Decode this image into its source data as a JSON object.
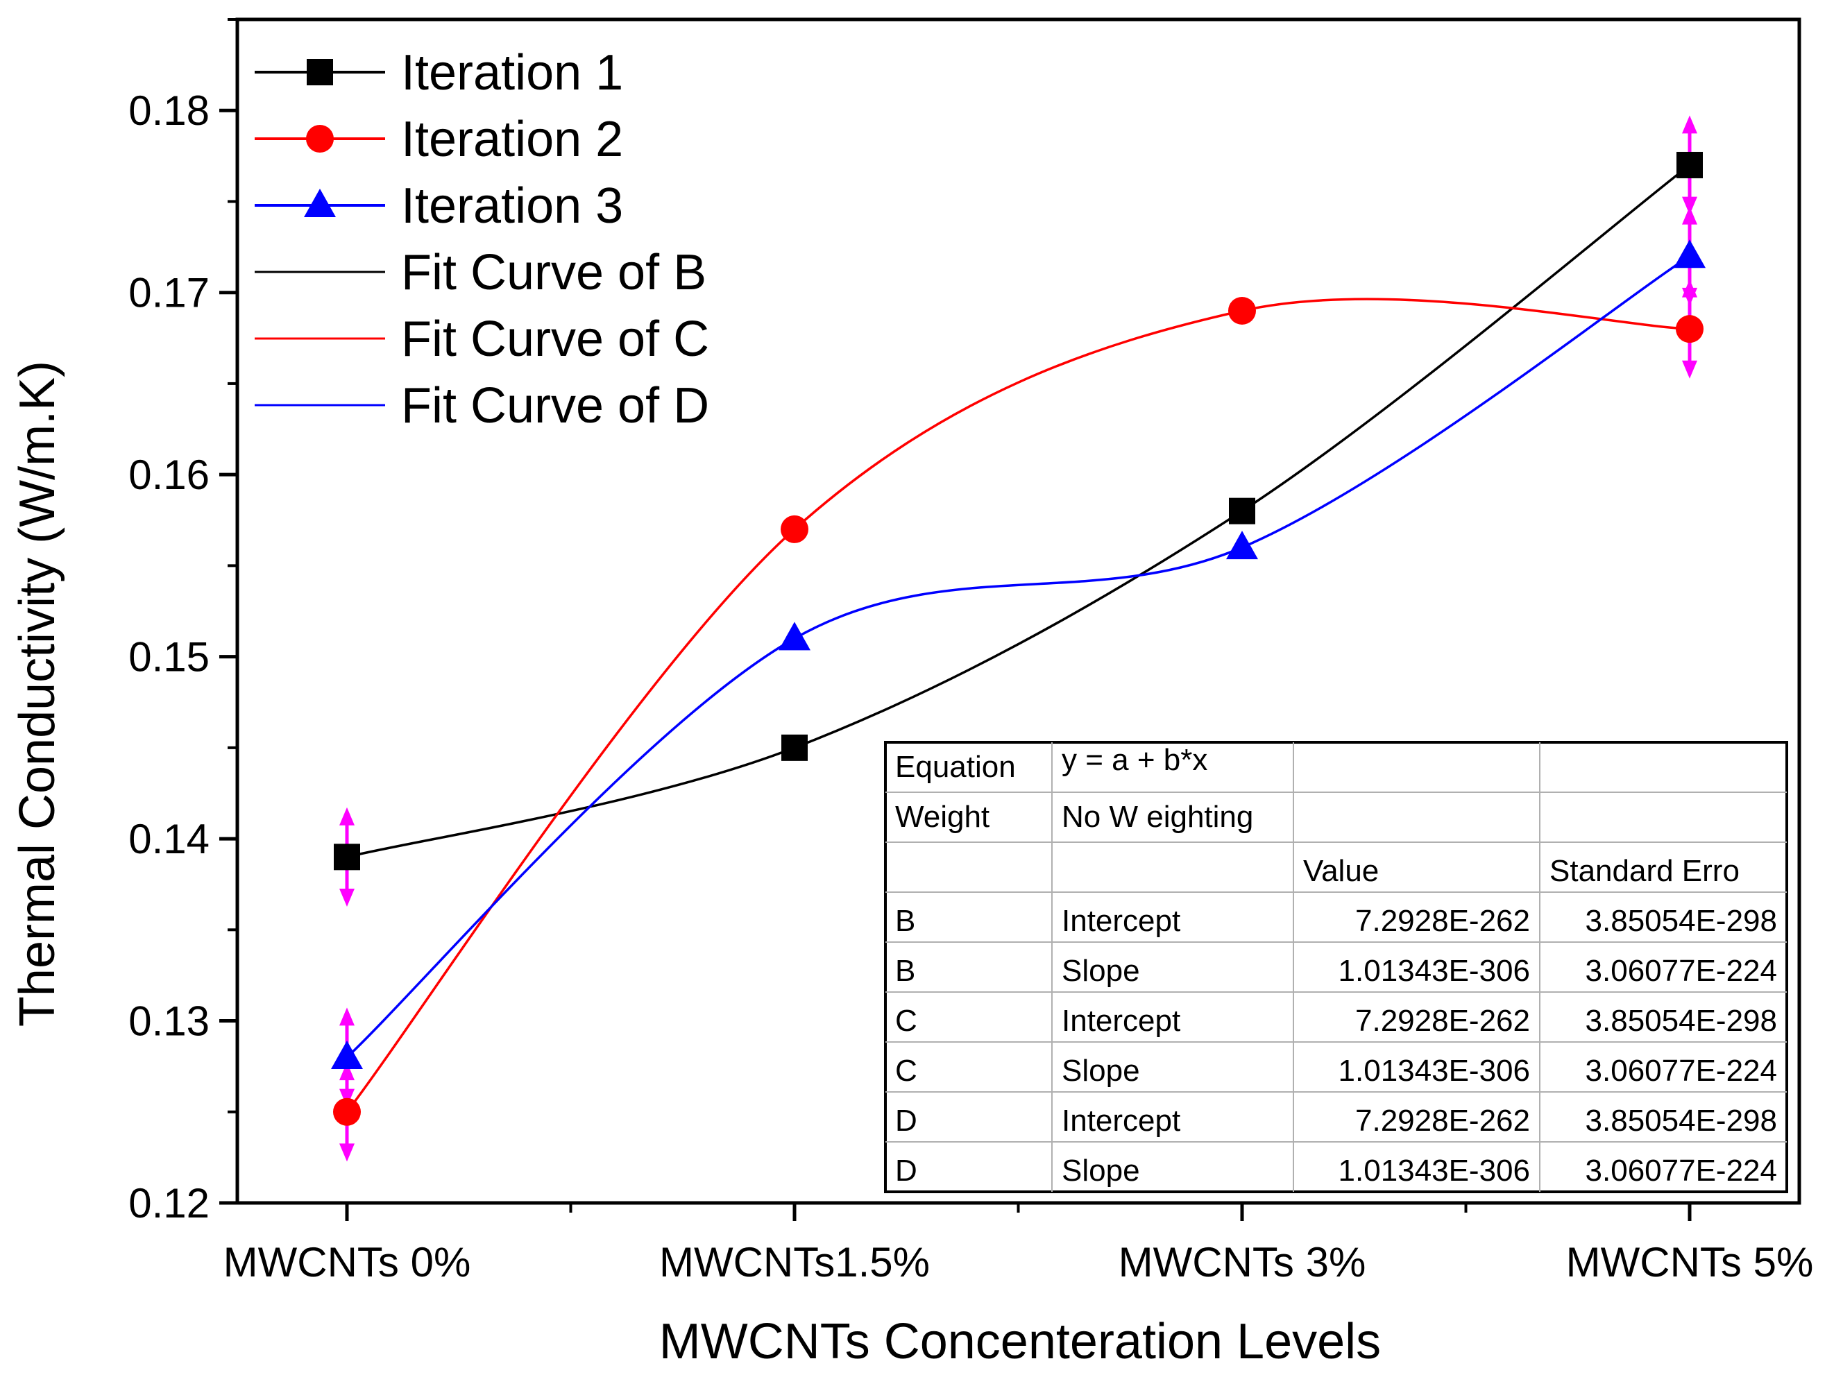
{
  "chart_data": {
    "type": "line",
    "title": "",
    "xlabel": "MWCNTs Concenteration Levels",
    "ylabel": "Thermal Conductivity (W/m.K)",
    "categories": [
      "MWCNTs 0%",
      "MWCNTs1.5%",
      "MWCNTs 3%",
      "MWCNTs 5%"
    ],
    "ylim": [
      0.12,
      0.185
    ],
    "yticks": [
      0.12,
      0.13,
      0.14,
      0.15,
      0.16,
      0.17,
      0.18
    ],
    "ytick_labels": [
      "0.12",
      "0.13",
      "0.14",
      "0.15",
      "0.16",
      "0.17",
      "0.18"
    ],
    "grid": false,
    "legend_position": "top-left",
    "series": [
      {
        "name": "Iteration 1",
        "marker": "square",
        "color": "#000000",
        "values": [
          0.139,
          0.145,
          0.158,
          0.177
        ]
      },
      {
        "name": "Iteration 2",
        "marker": "circle",
        "color": "#ff0000",
        "values": [
          0.125,
          0.157,
          0.169,
          0.168
        ]
      },
      {
        "name": "Iteration 3",
        "marker": "triangle",
        "color": "#0000ff",
        "values": [
          0.128,
          0.151,
          0.156,
          0.172
        ]
      }
    ],
    "fit_curves": [
      {
        "name": "Fit Curve of B",
        "color": "#000000",
        "of": "Iteration 1"
      },
      {
        "name": "Fit Curve of C",
        "color": "#ff0000",
        "of": "Iteration 2"
      },
      {
        "name": "Fit Curve of D",
        "color": "#0000ff",
        "of": "Iteration 3"
      }
    ],
    "error_bars": {
      "color": "#ff00ff",
      "items": [
        {
          "category": 0,
          "center": 0.139,
          "low": 0.1365,
          "high": 0.1415
        },
        {
          "category": 0,
          "center": 0.128,
          "low": 0.1255,
          "high": 0.1305
        },
        {
          "category": 0,
          "center": 0.125,
          "low": 0.1225,
          "high": 0.1275
        },
        {
          "category": 3,
          "center": 0.177,
          "low": 0.1745,
          "high": 0.1795
        },
        {
          "category": 3,
          "center": 0.172,
          "low": 0.1695,
          "high": 0.1745
        },
        {
          "category": 3,
          "center": 0.168,
          "low": 0.1655,
          "high": 0.1705
        }
      ]
    },
    "fit_table": {
      "rows": [
        [
          "Equation",
          "y = a + b*x",
          "",
          ""
        ],
        [
          "Weight",
          "No W eighting",
          "",
          ""
        ],
        [
          "",
          "",
          "Value",
          "Standard Erro"
        ],
        [
          "B",
          "Intercept",
          "7.2928E-262",
          "3.85054E-298"
        ],
        [
          "B",
          "Slope",
          "1.01343E-306",
          "3.06077E-224"
        ],
        [
          "C",
          "Intercept",
          "7.2928E-262",
          "3.85054E-298"
        ],
        [
          "C",
          "Slope",
          "1.01343E-306",
          "3.06077E-224"
        ],
        [
          "D",
          "Intercept",
          "7.2928E-262",
          "3.85054E-298"
        ],
        [
          "D",
          "Slope",
          "1.01343E-306",
          "3.06077E-224"
        ]
      ]
    }
  }
}
